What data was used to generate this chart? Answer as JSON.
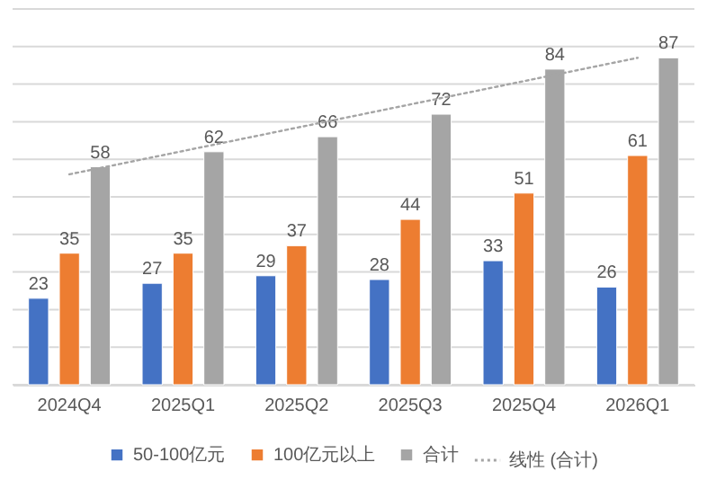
{
  "chart_data": {
    "type": "bar",
    "categories": [
      "2024Q4",
      "2025Q1",
      "2025Q2",
      "2025Q3",
      "2025Q4",
      "2026Q1"
    ],
    "series": [
      {
        "name": "50-100亿元",
        "color": "#4472c4",
        "values": [
          23,
          27,
          29,
          28,
          33,
          26
        ],
        "value_labels": [
          "23",
          "27",
          "29",
          "28",
          "33",
          "26"
        ]
      },
      {
        "name": "100亿元以上",
        "color": "#ed7d31",
        "values": [
          35,
          35,
          37,
          44,
          51,
          61
        ],
        "value_labels": [
          "35",
          "35",
          "37",
          "44",
          "51",
          "61"
        ]
      },
      {
        "name": "合计",
        "color": "#a5a5a5",
        "values": [
          58,
          62,
          66,
          72,
          84,
          87
        ],
        "value_labels": [
          "58",
          "62",
          "66",
          "72",
          "84",
          "87"
        ]
      },
      {
        "name": "线性 (合计)",
        "type": "line",
        "color": "#a5a5a5",
        "line_style": "dotted",
        "marker": "none",
        "values": [
          56,
          62.2,
          68.4,
          74.6,
          80.8,
          87
        ]
      }
    ],
    "ylim": [
      0,
      100
    ],
    "yticks": [
      {
        "value": 0,
        "label": null
      },
      {
        "value": 10,
        "label": null
      },
      {
        "value": 20,
        "label": null
      },
      {
        "value": 30,
        "label": null
      },
      {
        "value": 40,
        "label": null
      },
      {
        "value": 50,
        "label": null
      },
      {
        "value": 60,
        "label": null
      },
      {
        "value": 70,
        "label": null
      },
      {
        "value": 80,
        "label": null
      },
      {
        "value": 90,
        "label": null
      },
      {
        "value": 100,
        "label": null
      }
    ],
    "grid": "y",
    "legend": "bottom",
    "tick_labels": "x"
  }
}
